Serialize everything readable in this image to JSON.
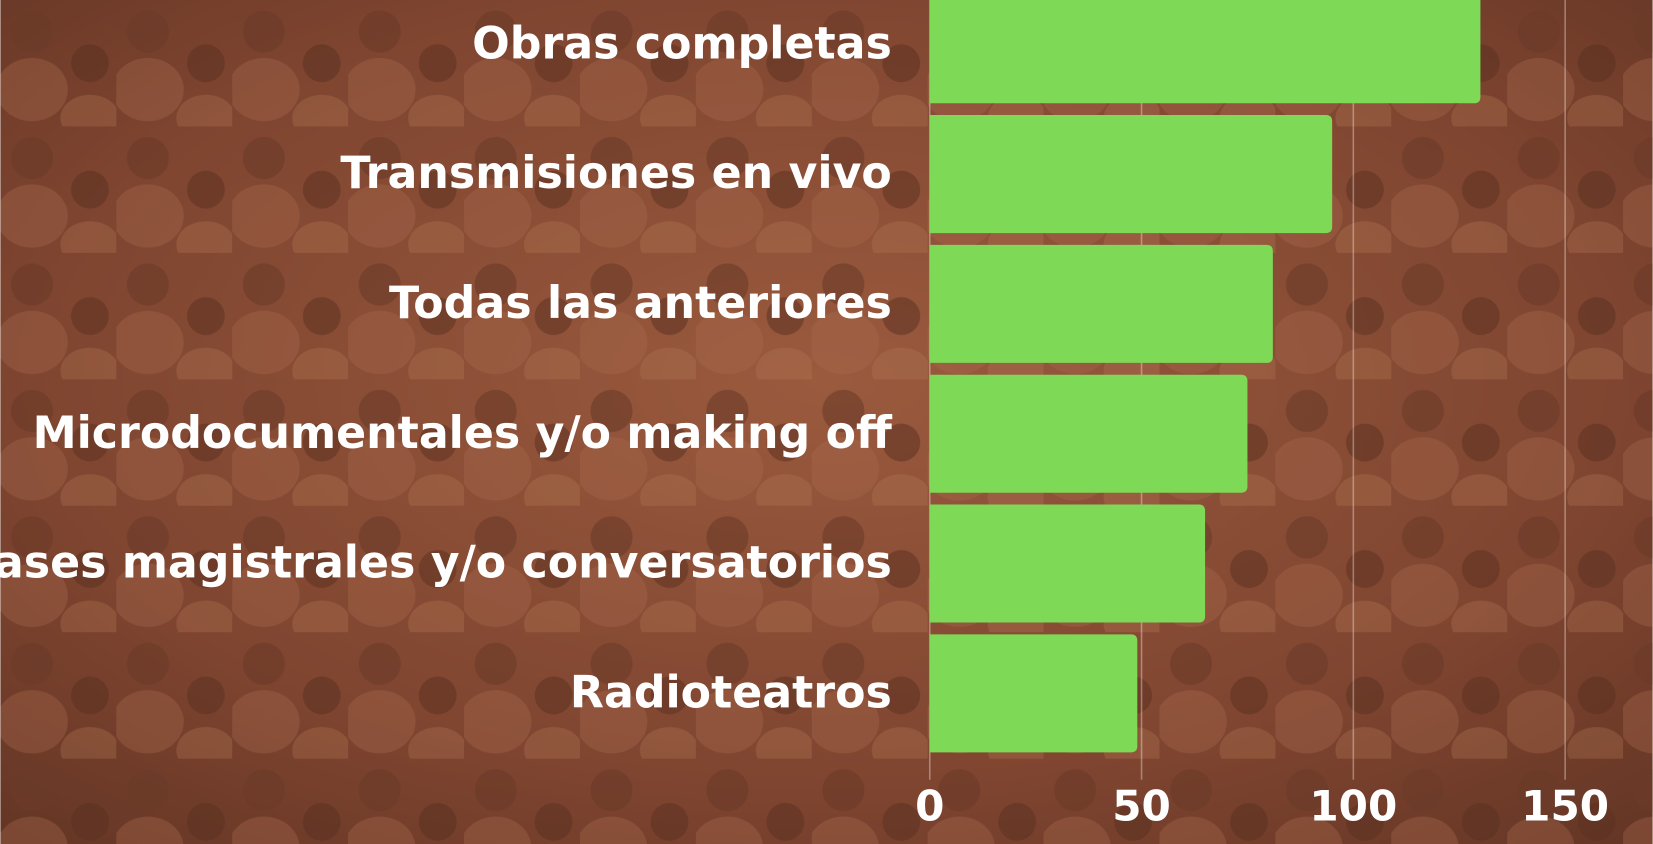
{
  "chart_data": {
    "type": "barh",
    "categories": [
      "Obras completas",
      "Transmisiones en vivo",
      "Todas las anteriores",
      "Microdocumentales y/o making off",
      "Clases magistrales y/o conversatorios",
      "Radioteatros"
    ],
    "values": [
      130,
      95,
      81,
      75,
      65,
      49
    ],
    "color": "#7ed957",
    "xlim": [
      0,
      170
    ],
    "xticks": [
      0,
      50,
      100,
      150
    ],
    "grid": true
  }
}
